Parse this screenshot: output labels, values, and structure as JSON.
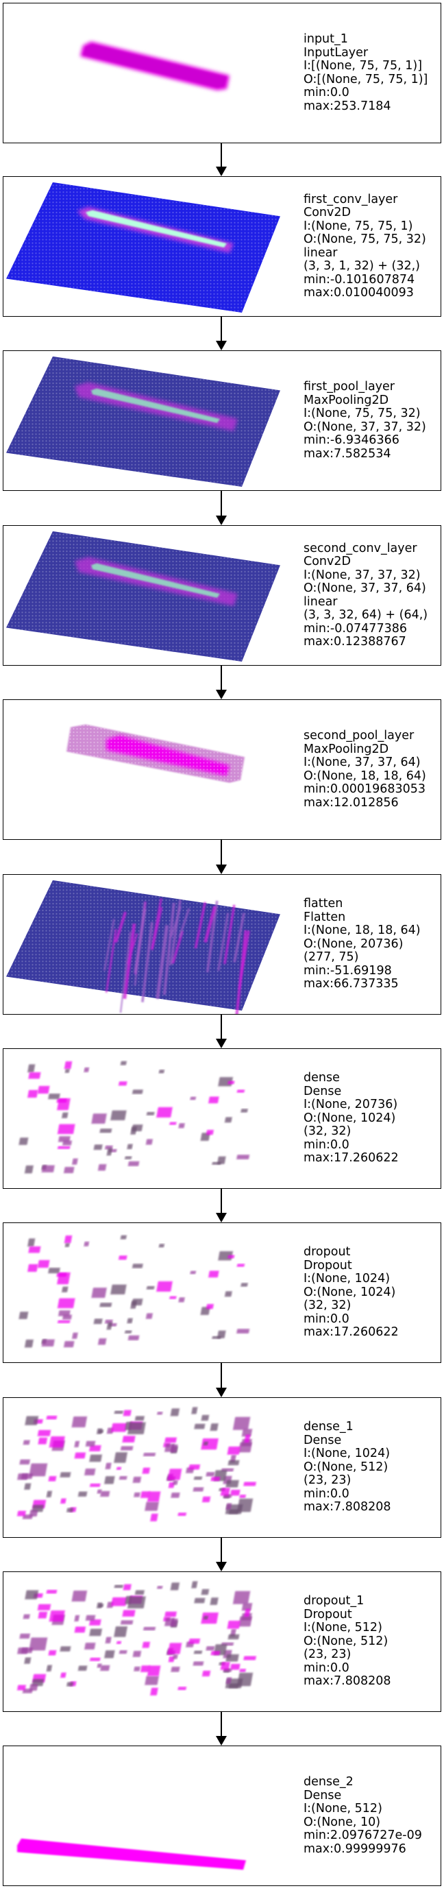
{
  "layers": [
    {
      "viz": "bar",
      "lines": [
        "input_1",
        "InputLayer",
        "I:[(None, 75, 75, 1)]",
        "O:[(None, 75, 75, 1)]",
        "min:0.0",
        "max:253.7184"
      ]
    },
    {
      "viz": "plane-bright",
      "lines": [
        "first_conv_layer",
        "Conv2D",
        "I:(None, 75, 75, 1)",
        "O:(None, 75, 75, 32)",
        "linear",
        "(3, 3, 1, 32) + (32,)",
        "min:-0.101607874",
        "max:0.010040093"
      ]
    },
    {
      "viz": "plane-dark",
      "lines": [
        "first_pool_layer",
        "MaxPooling2D",
        "I:(None, 75, 75, 32)",
        "O:(None, 37, 37, 32)",
        "min:-6.9346366",
        "max:7.582534"
      ]
    },
    {
      "viz": "plane-dark",
      "lines": [
        "second_conv_layer",
        "Conv2D",
        "I:(None, 37, 37, 32)",
        "O:(None, 37, 37, 64)",
        "linear",
        "(3, 3, 32, 64) + (64,)",
        "min:-0.07477386",
        "max:0.12388767"
      ]
    },
    {
      "viz": "pool-blob",
      "lines": [
        "second_pool_layer",
        "MaxPooling2D",
        "I:(None, 37, 37, 64)",
        "O:(None, 18, 18, 64)",
        "min:0.00019683053",
        "max:12.012856"
      ]
    },
    {
      "viz": "plane-streaks",
      "lines": [
        "flatten",
        "Flatten",
        "I:(None, 18, 18, 64)",
        "O:(None, 20736)",
        "(277, 75)",
        "min:-51.69198",
        "max:66.737335"
      ]
    },
    {
      "viz": "scatter-sparse",
      "lines": [
        "dense",
        "Dense",
        "I:(None, 20736)",
        "O:(None, 1024)",
        "(32, 32)",
        "min:0.0",
        "max:17.260622"
      ]
    },
    {
      "viz": "scatter-sparse",
      "lines": [
        "dropout",
        "Dropout",
        "I:(None, 1024)",
        "O:(None, 1024)",
        "(32, 32)",
        "min:0.0",
        "max:17.260622"
      ]
    },
    {
      "viz": "scatter-dense",
      "lines": [
        "dense_1",
        "Dense",
        "I:(None, 1024)",
        "O:(None, 512)",
        "(23, 23)",
        "min:0.0",
        "max:7.808208"
      ]
    },
    {
      "viz": "scatter-dense",
      "lines": [
        "dropout_1",
        "Dropout",
        "I:(None, 512)",
        "O:(None, 512)",
        "(23, 23)",
        "min:0.0",
        "max:7.808208"
      ]
    },
    {
      "viz": "output-bar",
      "lines": [
        "dense_2",
        "Dense",
        "I:(None, 512)",
        "O:(None, 10)",
        "min:2.0976727e-09",
        "max:0.99999976"
      ]
    }
  ]
}
